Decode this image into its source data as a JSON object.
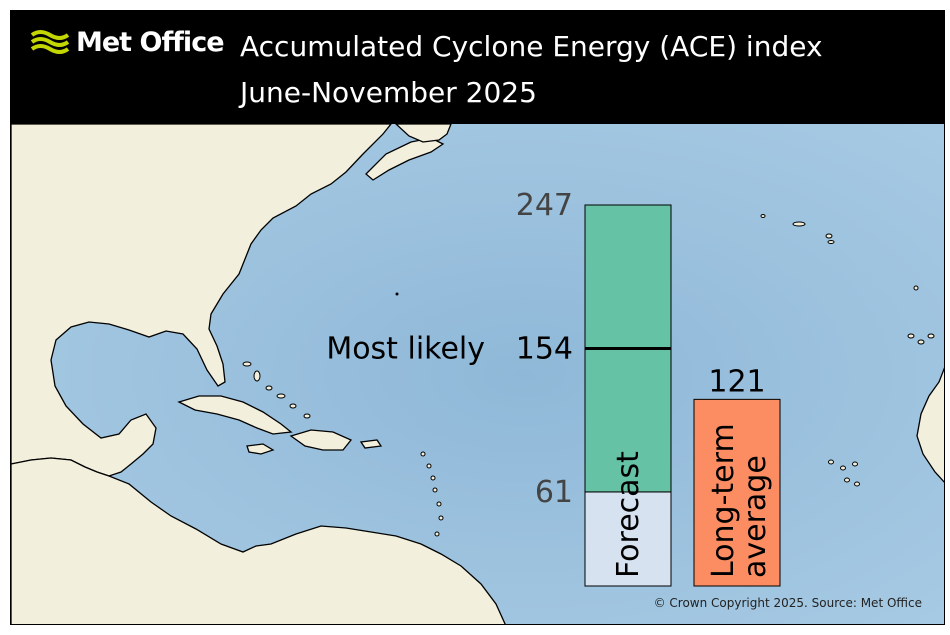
{
  "header": {
    "brand": "Met Office",
    "title_line1": "Accumulated Cyclone Energy (ACE) index",
    "title_line2": "June-November 2025"
  },
  "chart_data": {
    "type": "bar",
    "title": "Accumulated Cyclone Energy (ACE) index June-November 2025",
    "ylim": [
      0,
      275
    ],
    "bars": [
      {
        "label": "Forecast",
        "low": 61,
        "high": 247,
        "most_likely": 154,
        "most_likely_label": "Most likely",
        "range_color": "#66c2a5",
        "base_color": "#d6e2ef"
      },
      {
        "label": "Long-term average",
        "label_line1": "Long-term",
        "label_line2": "average",
        "value": 121,
        "color": "#fc8d62"
      }
    ],
    "value_labels": {
      "low": "61",
      "high": "247",
      "most_likely": "154",
      "average": "121"
    }
  },
  "colors": {
    "sea": "#9cc3e0",
    "land": "#f2efdc",
    "coast": "#000000"
  },
  "footer": {
    "copyright": "© Crown Copyright 2025. Source: Met Office"
  }
}
